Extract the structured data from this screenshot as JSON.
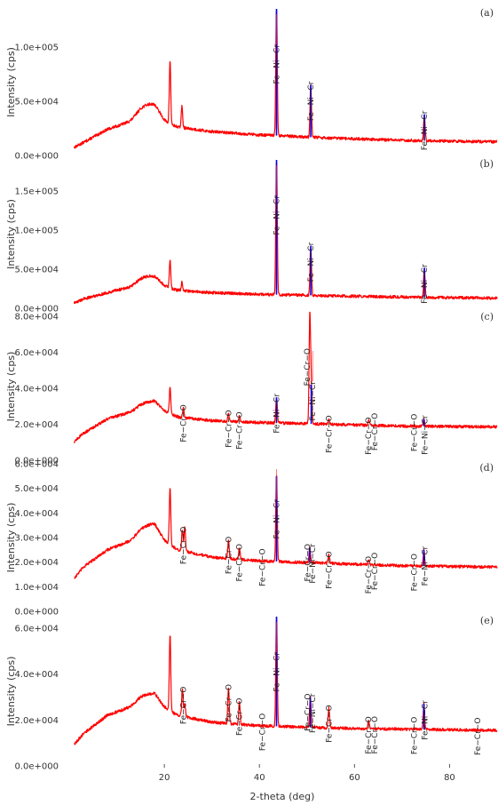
{
  "chart_data": {
    "type": "line",
    "xlabel": "2-theta (deg)",
    "ylabel": "Intensity (cps)",
    "xlim": [
      0,
      90
    ],
    "x_ticks": [
      20,
      40,
      60,
      80
    ],
    "colors": {
      "pattern": "#ff0000",
      "marker_fe_ni_cr": "#0000ee",
      "marker_red": "#ff2a2a"
    },
    "panels": [
      {
        "id": "(a)",
        "ylim": [
          0,
          135000
        ],
        "y_ticks": [
          {
            "v": 0,
            "t": "0.0e+000"
          },
          {
            "v": 50000,
            "t": "5.0e+004"
          },
          {
            "v": 100000,
            "t": "1.0e+005"
          }
        ],
        "background": [
          [
            0,
            5000
          ],
          [
            3,
            12000
          ],
          [
            8,
            24000
          ],
          [
            12,
            30000
          ],
          [
            15,
            32000
          ],
          [
            18,
            35000
          ],
          [
            20,
            30000
          ],
          [
            23,
            26000
          ],
          [
            30,
            22000
          ],
          [
            40,
            19000
          ],
          [
            55,
            16000
          ],
          [
            70,
            14000
          ],
          [
            90,
            12500
          ]
        ],
        "humps": [
          [
            15,
            8000,
            1.2
          ],
          [
            17.5,
            12000,
            1.5
          ]
        ],
        "peaks": [
          {
            "x": 21.2,
            "y": 87000
          },
          {
            "x": 23.7,
            "y": 45000
          },
          {
            "x": 43.6,
            "y": 135000,
            "blue": true
          },
          {
            "x": 50.8,
            "y": 65000,
            "blue": true
          },
          {
            "x": 74.7,
            "y": 38000,
            "blue": true
          }
        ],
        "labels": [
          {
            "x": 43.6,
            "text": "Fe−Ni−Cr",
            "red": true
          },
          {
            "x": 50.8,
            "text": "Fe−Ni−Cr"
          },
          {
            "x": 74.7,
            "text": "Fe−Ni−Cr"
          }
        ]
      },
      {
        "id": "(b)",
        "ylim": [
          0,
          190000
        ],
        "y_ticks": [
          {
            "v": 0,
            "t": "0.0e+000"
          },
          {
            "v": 50000,
            "t": "5.0e+004"
          },
          {
            "v": 100000,
            "t": "1.0e+005"
          },
          {
            "v": 150000,
            "t": "1.5e+005"
          }
        ],
        "background": [
          [
            0,
            4000
          ],
          [
            3,
            12000
          ],
          [
            8,
            20000
          ],
          [
            12,
            26000
          ],
          [
            15,
            28000
          ],
          [
            18,
            31000
          ],
          [
            20,
            27000
          ],
          [
            23,
            23000
          ],
          [
            30,
            20000
          ],
          [
            40,
            18000
          ],
          [
            55,
            16000
          ],
          [
            70,
            14500
          ],
          [
            90,
            13000
          ]
        ],
        "humps": [
          [
            15,
            7000,
            1.2
          ],
          [
            17.5,
            10000,
            1.5
          ]
        ],
        "peaks": [
          {
            "x": 21.2,
            "y": 62000
          },
          {
            "x": 23.7,
            "y": 33000
          },
          {
            "x": 43.6,
            "y": 190000,
            "blue": true
          },
          {
            "x": 50.8,
            "y": 80000,
            "blue": true
          },
          {
            "x": 74.7,
            "y": 52000,
            "blue": true
          }
        ],
        "labels": [
          {
            "x": 43.6,
            "text": "Fe−Ni−Cr",
            "red": true
          },
          {
            "x": 50.8,
            "text": "Fe−Ni−Cr"
          },
          {
            "x": 74.7,
            "text": "Fe−Ni−Cr"
          }
        ]
      },
      {
        "id": "(c)",
        "ylim": [
          0,
          82000
        ],
        "y_ticks": [
          {
            "v": 0,
            "t": "0.0e+000"
          },
          {
            "v": 20000,
            "t": "2.0e+004"
          },
          {
            "v": 40000,
            "t": "4.0e+004"
          },
          {
            "v": 60000,
            "t": "6.0e+004"
          },
          {
            "v": 80000,
            "t": "8.0e+004"
          }
        ],
        "background": [
          [
            0,
            8000
          ],
          [
            3,
            15000
          ],
          [
            8,
            23000
          ],
          [
            12,
            26000
          ],
          [
            15,
            28000
          ],
          [
            18,
            30000
          ],
          [
            20,
            27000
          ],
          [
            23,
            24000
          ],
          [
            30,
            22000
          ],
          [
            40,
            21000
          ],
          [
            55,
            20000
          ],
          [
            70,
            19000
          ],
          [
            90,
            18500
          ]
        ],
        "humps": [
          [
            15,
            2000,
            1.2
          ],
          [
            17.5,
            3000,
            1.5
          ]
        ],
        "peaks": [
          {
            "x": 21.2,
            "y": 40000
          },
          {
            "x": 24.0,
            "y": 29000
          },
          {
            "x": 33.5,
            "y": 26000
          },
          {
            "x": 35.8,
            "y": 25000
          },
          {
            "x": 43.6,
            "y": 35000,
            "blue": true
          },
          {
            "x": 50.6,
            "y": 80000
          },
          {
            "x": 50.9,
            "y": 42000,
            "blue": true
          },
          {
            "x": 54.6,
            "y": 23000
          },
          {
            "x": 63.0,
            "y": 22000
          },
          {
            "x": 74.6,
            "y": 23000,
            "blue": true
          }
        ],
        "labels": [
          {
            "x": 24.0,
            "text": "Fe−Cr−O"
          },
          {
            "x": 33.5,
            "text": "Fe−Cr−O"
          },
          {
            "x": 35.8,
            "text": "Fe−Cr−O"
          },
          {
            "x": 43.6,
            "text": "Fe−Ni−Cr"
          },
          {
            "x": 50.0,
            "text": "Fe−Cr−O"
          },
          {
            "x": 51.2,
            "text": "Fe−Ni−Cr",
            "red": true
          },
          {
            "x": 54.6,
            "text": "Fe−Cr−O"
          },
          {
            "x": 62.9,
            "text": "Fe−Cr−O"
          },
          {
            "x": 64.2,
            "text": "Fe−Cr−O"
          },
          {
            "x": 72.5,
            "text": "Fe−Cr−O"
          },
          {
            "x": 74.8,
            "text": "Fe−Ni−Cr"
          }
        ]
      },
      {
        "id": "(d)",
        "ylim": [
          0,
          60000
        ],
        "y_ticks": [
          {
            "v": 0,
            "t": "0.0e+000"
          },
          {
            "v": 10000,
            "t": "1.0e+004"
          },
          {
            "v": 20000,
            "t": "2.0e+004"
          },
          {
            "v": 30000,
            "t": "3.0e+004"
          },
          {
            "v": 40000,
            "t": "4.0e+004"
          },
          {
            "v": 50000,
            "t": "5.0e+004"
          },
          {
            "v": 60000,
            "t": "6.0e+004"
          }
        ],
        "background": [
          [
            0,
            11000
          ],
          [
            3,
            18000
          ],
          [
            8,
            25000
          ],
          [
            12,
            28000
          ],
          [
            15,
            29000
          ],
          [
            18,
            31000
          ],
          [
            20,
            28000
          ],
          [
            23,
            25000
          ],
          [
            30,
            22000
          ],
          [
            40,
            20500
          ],
          [
            55,
            19500
          ],
          [
            70,
            18500
          ],
          [
            90,
            18000
          ]
        ],
        "humps": [
          [
            15,
            3000,
            1.2
          ],
          [
            17.5,
            4500,
            1.5
          ]
        ],
        "peaks": [
          {
            "x": 21.2,
            "y": 50000
          },
          {
            "x": 23.8,
            "y": 33000
          },
          {
            "x": 24.3,
            "y": 34000
          },
          {
            "x": 33.5,
            "y": 29000
          },
          {
            "x": 35.8,
            "y": 26000
          },
          {
            "x": 43.6,
            "y": 55000,
            "blue": true
          },
          {
            "x": 50.6,
            "y": 26000,
            "blue": true
          },
          {
            "x": 54.6,
            "y": 23000
          },
          {
            "x": 63.0,
            "y": 21000
          },
          {
            "x": 74.6,
            "y": 25000,
            "blue": true
          }
        ],
        "labels": [
          {
            "x": 24.0,
            "text": "Fe−Cr−O"
          },
          {
            "x": 33.5,
            "text": "Fe−Cr−O"
          },
          {
            "x": 35.8,
            "text": "Fe−Cr−O"
          },
          {
            "x": 43.6,
            "text": "Fe−Ni−Cr",
            "red": true
          },
          {
            "x": 40.6,
            "text": "Fe−Cr−O"
          },
          {
            "x": 50.1,
            "text": "Fe−Cr−O"
          },
          {
            "x": 51.2,
            "text": "Fe−Ni−Cr"
          },
          {
            "x": 54.6,
            "text": "Fe−Cr−O"
          },
          {
            "x": 62.9,
            "text": "Fe−Cr−O"
          },
          {
            "x": 64.2,
            "text": "Fe−Cr−O"
          },
          {
            "x": 72.5,
            "text": "Fe−Cr−O"
          },
          {
            "x": 74.8,
            "text": "Fe−Ni−Cr"
          }
        ]
      },
      {
        "id": "(e)",
        "ylim": [
          0,
          65000
        ],
        "y_ticks": [
          {
            "v": 0,
            "t": "0.0e+000"
          },
          {
            "v": 20000,
            "t": "2.0e+004"
          },
          {
            "v": 40000,
            "t": "4.0e+004"
          },
          {
            "v": 60000,
            "t": "6.0e+004"
          }
        ],
        "background": [
          [
            0,
            7000
          ],
          [
            3,
            14000
          ],
          [
            8,
            22000
          ],
          [
            12,
            25000
          ],
          [
            15,
            26500
          ],
          [
            18,
            28000
          ],
          [
            20,
            25000
          ],
          [
            23,
            22000
          ],
          [
            30,
            19000
          ],
          [
            40,
            17500
          ],
          [
            55,
            16500
          ],
          [
            70,
            16000
          ],
          [
            90,
            15500
          ]
        ],
        "humps": [
          [
            15,
            2500,
            1.2
          ],
          [
            17.5,
            3500,
            1.5
          ]
        ],
        "peaks": [
          {
            "x": 21.2,
            "y": 57000
          },
          {
            "x": 23.8,
            "y": 33000
          },
          {
            "x": 24.3,
            "y": 27000
          },
          {
            "x": 33.5,
            "y": 34000
          },
          {
            "x": 35.8,
            "y": 28000
          },
          {
            "x": 43.6,
            "y": 65000,
            "blue": true
          },
          {
            "x": 50.7,
            "y": 30000,
            "blue": true
          },
          {
            "x": 54.6,
            "y": 25000
          },
          {
            "x": 63.0,
            "y": 20000
          },
          {
            "x": 74.6,
            "y": 27000,
            "blue": true
          }
        ],
        "labels": [
          {
            "x": 24.0,
            "text": "Fe−Cr−O"
          },
          {
            "x": 33.5,
            "text": "Fe−Cr−O"
          },
          {
            "x": 35.8,
            "text": "Fe−Cr−O"
          },
          {
            "x": 43.6,
            "text": "Fe−Ni−Cr",
            "red": true
          },
          {
            "x": 40.6,
            "text": "Fe−Cr−O"
          },
          {
            "x": 50.1,
            "text": "Fe−Cr−O"
          },
          {
            "x": 51.2,
            "text": "Fe−Ni−Cr"
          },
          {
            "x": 54.6,
            "text": "Fe−Cr−O"
          },
          {
            "x": 62.9,
            "text": "Fe−Cr−O"
          },
          {
            "x": 64.2,
            "text": "Fe−Cr−O"
          },
          {
            "x": 72.5,
            "text": "Fe−Cr−O"
          },
          {
            "x": 74.8,
            "text": "Fe−Ni−Cr"
          },
          {
            "x": 85.9,
            "text": "Fe−Cr−O"
          }
        ]
      }
    ]
  }
}
